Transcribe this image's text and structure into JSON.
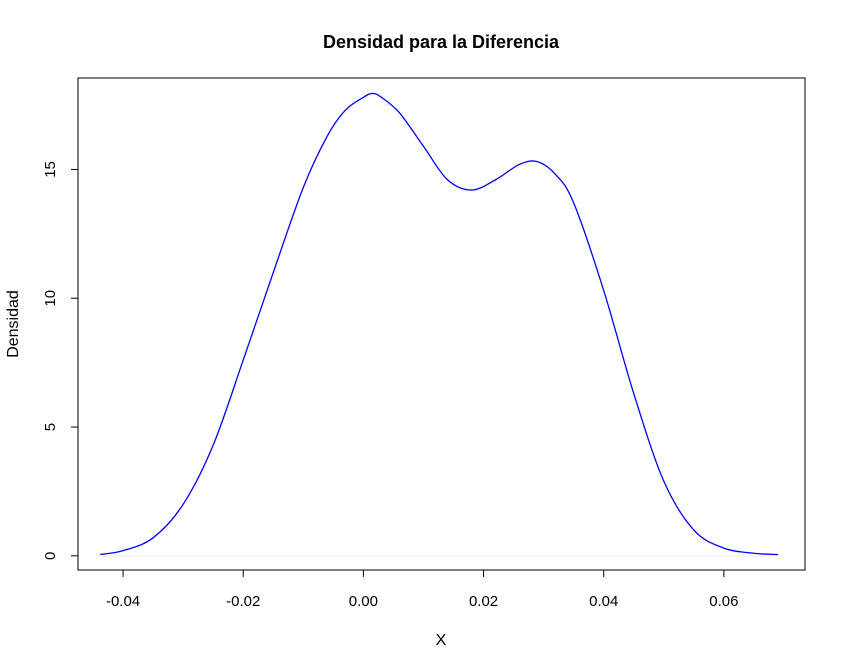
{
  "chart_data": {
    "type": "line",
    "title": "Densidad para la Diferencia",
    "xlabel": "X",
    "ylabel": "Densidad",
    "xlim": [
      -0.0475,
      0.0735
    ],
    "ylim": [
      -0.55,
      18.55
    ],
    "x_ticks": [
      -0.04,
      -0.02,
      0.0,
      0.02,
      0.04,
      0.06
    ],
    "x_tick_labels": [
      "-0.04",
      "-0.02",
      "0.00",
      "0.02",
      "0.04",
      "0.06"
    ],
    "y_ticks": [
      0,
      5,
      10,
      15
    ],
    "y_tick_labels": [
      "0",
      "5",
      "10",
      "15"
    ],
    "grid": false,
    "baseline": 0,
    "series": [
      {
        "color": "#0000ff",
        "x": [
          -0.0438,
          -0.04,
          -0.035,
          -0.03,
          -0.025,
          -0.02,
          -0.015,
          -0.01,
          -0.006,
          -0.003,
          0.0,
          0.0015,
          0.003,
          0.006,
          0.01,
          0.014,
          0.018,
          0.022,
          0.026,
          0.029,
          0.032,
          0.035,
          0.04,
          0.045,
          0.05,
          0.055,
          0.06,
          0.065,
          0.069
        ],
        "y": [
          0.05,
          0.2,
          0.7,
          2.0,
          4.3,
          7.6,
          11.0,
          14.3,
          16.3,
          17.3,
          17.8,
          17.95,
          17.8,
          17.2,
          15.9,
          14.6,
          14.2,
          14.6,
          15.2,
          15.3,
          14.8,
          13.7,
          10.3,
          6.3,
          2.9,
          1.0,
          0.3,
          0.1,
          0.05
        ]
      }
    ]
  }
}
